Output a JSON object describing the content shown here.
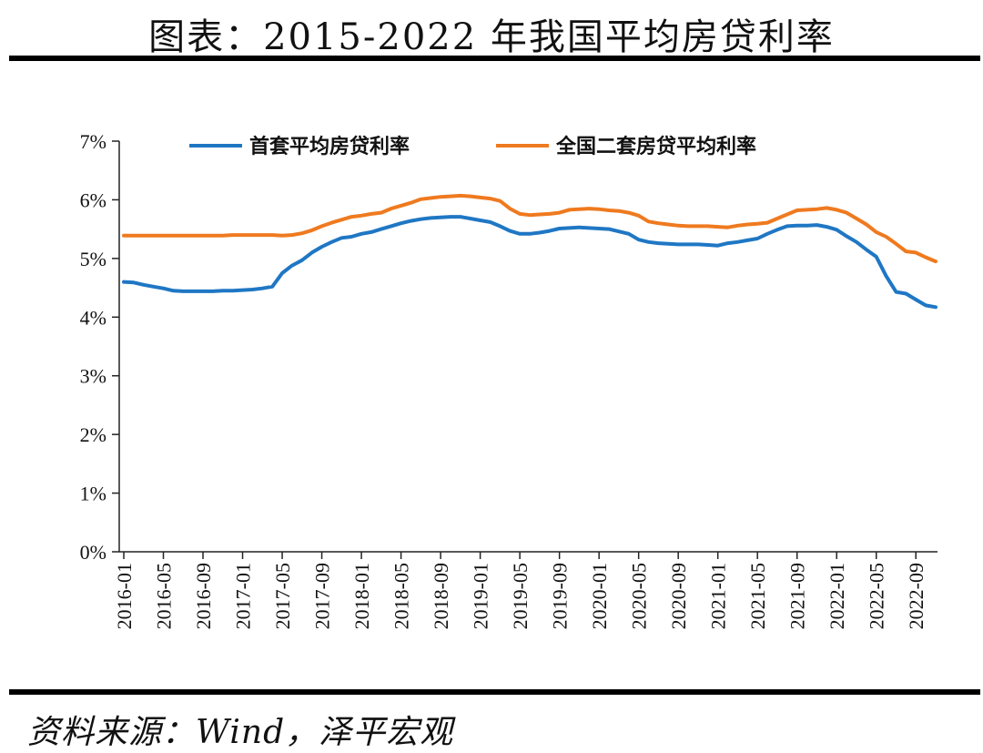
{
  "page": {
    "title": "图表：2015-2022 年我国平均房贷利率",
    "source": "资料来源：Wind，泽平宏观"
  },
  "chart_data": {
    "type": "line",
    "title": "",
    "xlabel": "",
    "ylabel": "",
    "ylim": [
      0,
      7
    ],
    "y_ticks": [
      "0%",
      "1%",
      "2%",
      "3%",
      "4%",
      "5%",
      "6%",
      "7%"
    ],
    "x_ticks": [
      "2016-01",
      "2016-05",
      "2016-09",
      "2017-01",
      "2017-05",
      "2017-09",
      "2018-01",
      "2018-05",
      "2018-09",
      "2019-01",
      "2019-05",
      "2019-09",
      "2020-01",
      "2020-05",
      "2020-09",
      "2021-01",
      "2021-05",
      "2021-09",
      "2022-01",
      "2022-05",
      "2022-09"
    ],
    "legend_position": "top",
    "grid": false,
    "x": [
      "2016-01",
      "2016-02",
      "2016-03",
      "2016-04",
      "2016-05",
      "2016-06",
      "2016-07",
      "2016-08",
      "2016-09",
      "2016-10",
      "2016-11",
      "2016-12",
      "2017-01",
      "2017-02",
      "2017-03",
      "2017-04",
      "2017-05",
      "2017-06",
      "2017-07",
      "2017-08",
      "2017-09",
      "2017-10",
      "2017-11",
      "2017-12",
      "2018-01",
      "2018-02",
      "2018-03",
      "2018-04",
      "2018-05",
      "2018-06",
      "2018-07",
      "2018-08",
      "2018-09",
      "2018-10",
      "2018-11",
      "2018-12",
      "2019-01",
      "2019-02",
      "2019-03",
      "2019-04",
      "2019-05",
      "2019-06",
      "2019-07",
      "2019-08",
      "2019-09",
      "2019-10",
      "2019-11",
      "2019-12",
      "2020-01",
      "2020-02",
      "2020-03",
      "2020-04",
      "2020-05",
      "2020-06",
      "2020-07",
      "2020-08",
      "2020-09",
      "2020-10",
      "2020-11",
      "2020-12",
      "2021-01",
      "2021-02",
      "2021-03",
      "2021-04",
      "2021-05",
      "2021-06",
      "2021-07",
      "2021-08",
      "2021-09",
      "2021-10",
      "2021-11",
      "2021-12",
      "2022-01",
      "2022-02",
      "2022-03",
      "2022-04",
      "2022-05",
      "2022-06",
      "2022-07",
      "2022-08",
      "2022-09",
      "2022-10",
      "2022-11"
    ],
    "series": [
      {
        "name": "首套平均房贷利率",
        "color": "#1f77c4",
        "values": [
          4.6,
          4.59,
          4.55,
          4.52,
          4.49,
          4.45,
          4.44,
          4.44,
          4.44,
          4.44,
          4.45,
          4.45,
          4.46,
          4.47,
          4.49,
          4.52,
          4.75,
          4.88,
          4.97,
          5.1,
          5.2,
          5.28,
          5.35,
          5.37,
          5.42,
          5.45,
          5.5,
          5.55,
          5.6,
          5.64,
          5.67,
          5.69,
          5.7,
          5.71,
          5.71,
          5.68,
          5.65,
          5.62,
          5.55,
          5.47,
          5.42,
          5.42,
          5.44,
          5.47,
          5.51,
          5.52,
          5.53,
          5.52,
          5.51,
          5.5,
          5.46,
          5.42,
          5.32,
          5.28,
          5.26,
          5.25,
          5.24,
          5.24,
          5.24,
          5.23,
          5.22,
          5.26,
          5.28,
          5.31,
          5.34,
          5.42,
          5.49,
          5.55,
          5.56,
          5.56,
          5.57,
          5.54,
          5.49,
          5.38,
          5.28,
          5.15,
          5.03,
          4.7,
          4.43,
          4.4,
          4.3,
          4.2,
          4.17
        ]
      },
      {
        "name": "全国二套房贷平均利率",
        "color": "#ef7a1f",
        "values": [
          5.39,
          5.39,
          5.39,
          5.39,
          5.39,
          5.39,
          5.39,
          5.39,
          5.39,
          5.39,
          5.39,
          5.4,
          5.4,
          5.4,
          5.4,
          5.4,
          5.39,
          5.4,
          5.43,
          5.48,
          5.55,
          5.61,
          5.66,
          5.71,
          5.73,
          5.76,
          5.78,
          5.85,
          5.9,
          5.95,
          6.01,
          6.03,
          6.05,
          6.06,
          6.07,
          6.06,
          6.04,
          6.02,
          5.98,
          5.85,
          5.76,
          5.74,
          5.75,
          5.76,
          5.78,
          5.83,
          5.84,
          5.85,
          5.84,
          5.82,
          5.81,
          5.78,
          5.73,
          5.63,
          5.6,
          5.58,
          5.56,
          5.55,
          5.55,
          5.55,
          5.54,
          5.53,
          5.56,
          5.58,
          5.59,
          5.61,
          5.68,
          5.75,
          5.82,
          5.83,
          5.84,
          5.86,
          5.83,
          5.78,
          5.68,
          5.58,
          5.45,
          5.37,
          5.25,
          5.12,
          5.1,
          5.02,
          4.95
        ]
      }
    ]
  }
}
